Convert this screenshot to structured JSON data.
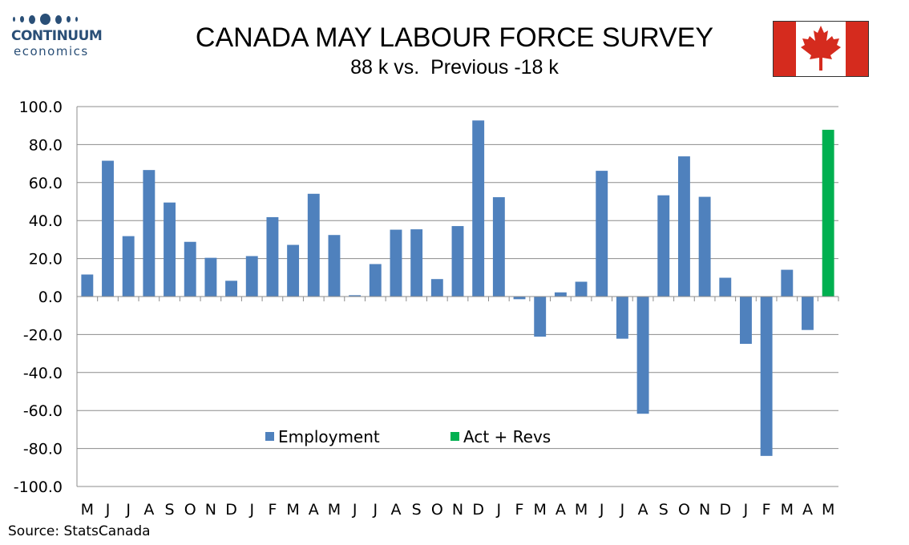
{
  "brand": {
    "name": "CONTINUUM",
    "sub": "economics",
    "color": "#2a4f77"
  },
  "source": "Source: StatsCanada",
  "flag": {
    "icon": "canada-flag-icon",
    "red": "#d52b1e",
    "white": "#ffffff"
  },
  "chart_data": {
    "type": "bar",
    "title": "CANADA MAY LABOUR FORCE SURVEY",
    "subtitle": "88 k vs.  Previous -18 k",
    "xlabel": "",
    "ylabel": "",
    "ylim": [
      -100,
      100
    ],
    "yticks": [
      "100.0",
      "80.0",
      "60.0",
      "40.0",
      "20.0",
      "0.0",
      "-20.0",
      "-40.0",
      "-60.0",
      "-80.0",
      "-100.0"
    ],
    "grid": true,
    "legend_position": "lower-center",
    "categories": [
      "M",
      "J",
      "J",
      "A",
      "S",
      "O",
      "N",
      "D",
      "J",
      "F",
      "M",
      "A",
      "M",
      "J",
      "J",
      "A",
      "S",
      "O",
      "N",
      "D",
      "J",
      "F",
      "M",
      "A",
      "M",
      "J",
      "J",
      "A",
      "S",
      "O",
      "N",
      "D",
      "J",
      "F",
      "M",
      "A",
      "M"
    ],
    "series": [
      {
        "name": "Employment",
        "color": "#4f81bd",
        "values": [
          11.6,
          71.5,
          31.8,
          66.6,
          49.5,
          28.8,
          20.4,
          8.3,
          21.3,
          41.8,
          27.2,
          54.1,
          32.4,
          0.7,
          17.1,
          35.2,
          35.4,
          9.2,
          37.1,
          92.7,
          52.3,
          -1.4,
          -21.1,
          2.2,
          7.8,
          66.2,
          -22.2,
          -61.7,
          53.3,
          73.8,
          52.5,
          9.9,
          -24.9,
          -83.9,
          14.1,
          -17.6,
          null
        ]
      },
      {
        "name": "Act + Revs",
        "color": "#00b050",
        "values": [
          null,
          null,
          null,
          null,
          null,
          null,
          null,
          null,
          null,
          null,
          null,
          null,
          null,
          null,
          null,
          null,
          null,
          null,
          null,
          null,
          null,
          null,
          null,
          null,
          null,
          null,
          null,
          null,
          null,
          null,
          null,
          null,
          null,
          null,
          null,
          null,
          87.8
        ]
      }
    ]
  }
}
